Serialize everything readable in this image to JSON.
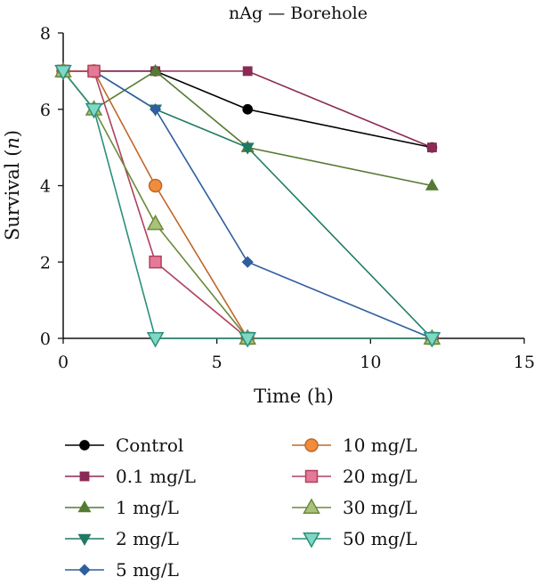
{
  "chart_data": {
    "type": "line",
    "title": "nAg — Borehole",
    "xlabel": "Time (h)",
    "ylabel_main": "Survival (",
    "ylabel_italic": "n",
    "ylabel_end": ")",
    "xlim": [
      0,
      15
    ],
    "ylim": [
      0,
      8
    ],
    "xticks": [
      0,
      5,
      10,
      15
    ],
    "yticks": [
      0,
      2,
      4,
      6,
      8
    ],
    "grid": false,
    "legend_position": "bottom",
    "series": [
      {
        "name": "Control",
        "marker": "circle",
        "color": "#000000",
        "fill": "#000000",
        "x": [
          0,
          1,
          3,
          6,
          12
        ],
        "y": [
          7,
          7,
          7,
          6,
          5
        ]
      },
      {
        "name": "0.1 mg/L",
        "marker": "square",
        "color": "#8b2a55",
        "fill": "#8b2a55",
        "x": [
          0,
          1,
          3,
          6,
          12
        ],
        "y": [
          7,
          7,
          7,
          7,
          5
        ]
      },
      {
        "name": "1 mg/L",
        "marker": "triangle",
        "color": "#557a32",
        "fill": "#557a32",
        "x": [
          0,
          1,
          3,
          6,
          12
        ],
        "y": [
          7,
          6,
          7,
          5,
          4
        ]
      },
      {
        "name": "2 mg/L",
        "marker": "tridown",
        "color": "#1f7a63",
        "fill": "#1f7a63",
        "x": [
          0,
          1,
          3,
          6,
          12
        ],
        "y": [
          7,
          7,
          6,
          5,
          0
        ]
      },
      {
        "name": "5 mg/L",
        "marker": "diamond",
        "color": "#2f5f9e",
        "fill": "#2f5f9e",
        "x": [
          0,
          1,
          3,
          6,
          12
        ],
        "y": [
          7,
          7,
          6,
          2,
          0
        ]
      },
      {
        "name": "10 mg/L",
        "marker": "circle",
        "color": "#c0672a",
        "fill": "#f08c3c",
        "x": [
          0,
          1,
          3,
          6,
          12
        ],
        "y": [
          7,
          7,
          4,
          0,
          0
        ]
      },
      {
        "name": "20 mg/L",
        "marker": "square",
        "color": "#b0415e",
        "fill": "#e57a98",
        "x": [
          0,
          1,
          3,
          6,
          12
        ],
        "y": [
          7,
          7,
          2,
          0,
          0
        ]
      },
      {
        "name": "30 mg/L",
        "marker": "triangle",
        "color": "#6b8a3a",
        "fill": "#a8c27a",
        "x": [
          0,
          1,
          3,
          6,
          12
        ],
        "y": [
          7,
          6,
          3,
          0,
          0
        ]
      },
      {
        "name": "50 mg/L",
        "marker": "tridown",
        "color": "#2a8f7a",
        "fill": "#7fd8c4",
        "x": [
          0,
          1,
          3,
          6,
          12
        ],
        "y": [
          7,
          6,
          0,
          0,
          0
        ]
      }
    ]
  }
}
